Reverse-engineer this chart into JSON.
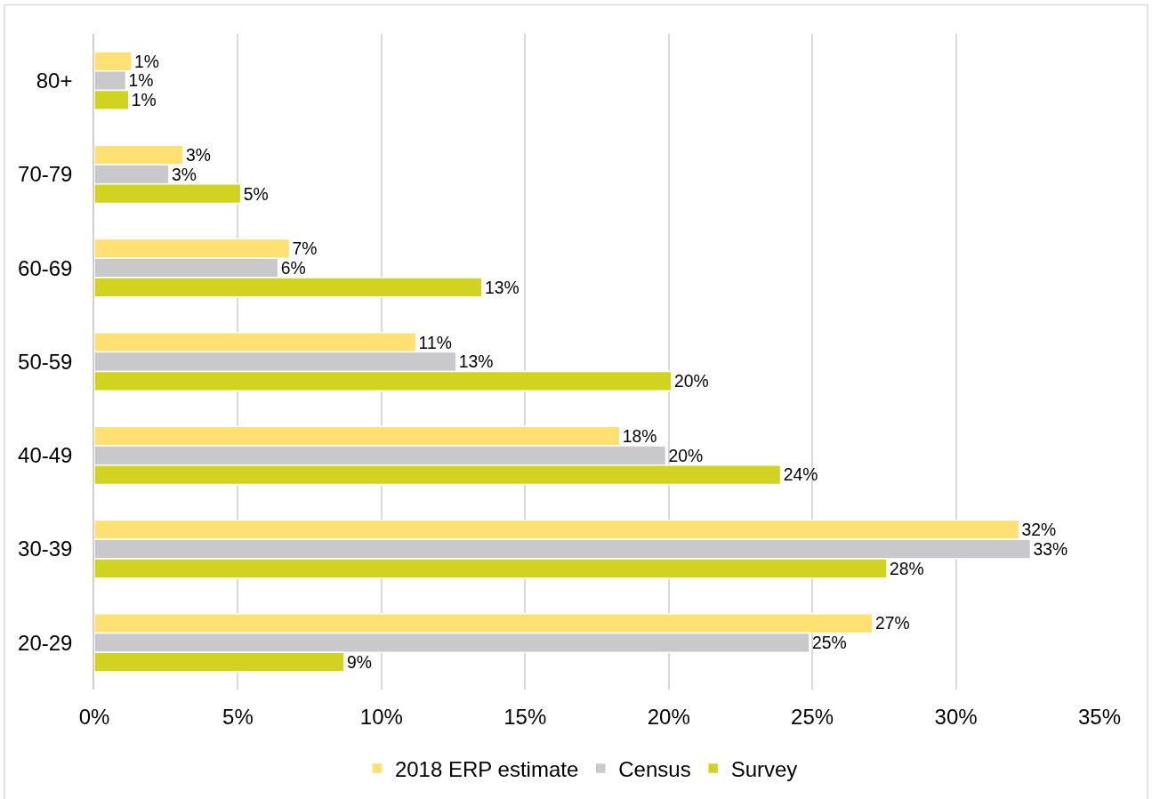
{
  "chart_data": {
    "type": "bar",
    "orientation": "horizontal",
    "categories": [
      "80+",
      "70-79",
      "60-69",
      "50-59",
      "40-49",
      "30-39",
      "20-29"
    ],
    "series": [
      {
        "name": "2018 ERP estimate",
        "color": "#ffe072",
        "values": [
          1.3,
          3.1,
          6.8,
          11.2,
          18.3,
          32.2,
          27.1
        ],
        "value_labels": [
          "1%",
          "3%",
          "7%",
          "11%",
          "18%",
          "32%",
          "27%"
        ]
      },
      {
        "name": "Census",
        "color": "#c9c9cc",
        "values": [
          1.1,
          2.6,
          6.4,
          12.6,
          19.9,
          32.6,
          24.9
        ],
        "value_labels": [
          "1%",
          "3%",
          "6%",
          "13%",
          "20%",
          "33%",
          "25%"
        ]
      },
      {
        "name": "Survey",
        "color": "#d0d421",
        "values": [
          1.2,
          5.1,
          13.5,
          20.1,
          23.9,
          27.6,
          8.7
        ],
        "value_labels": [
          "1%",
          "5%",
          "13%",
          "20%",
          "24%",
          "28%",
          "9%"
        ]
      }
    ],
    "xlim": [
      0,
      35
    ],
    "xticks": [
      {
        "value": 0,
        "label": "0%"
      },
      {
        "value": 5,
        "label": "5%"
      },
      {
        "value": 10,
        "label": "10%"
      },
      {
        "value": 15,
        "label": "15%"
      },
      {
        "value": 20,
        "label": "20%"
      },
      {
        "value": 25,
        "label": "25%"
      },
      {
        "value": 30,
        "label": "30%"
      },
      {
        "value": 35,
        "label": "35%"
      }
    ],
    "grid": "x",
    "legend": "bottom"
  }
}
